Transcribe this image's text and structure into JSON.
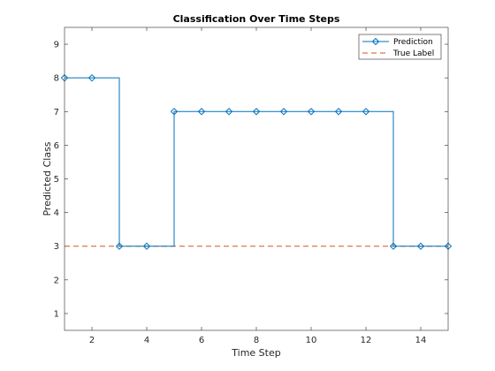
{
  "chart_data": {
    "type": "line",
    "title": "Classification Over Time Steps",
    "xlabel": "Time Step",
    "ylabel": "Predicted Class",
    "xlim": [
      1,
      15
    ],
    "ylim": [
      0.5,
      9.5
    ],
    "xticks": [
      2,
      4,
      6,
      8,
      10,
      12,
      14
    ],
    "yticks": [
      1,
      2,
      3,
      4,
      5,
      6,
      7,
      8,
      9
    ],
    "grid": false,
    "legend_position": "top-right",
    "series": [
      {
        "name": "Prediction",
        "style": "stairs",
        "marker": "diamond",
        "color": "#0072BD",
        "x": [
          1,
          2,
          3,
          4,
          5,
          6,
          7,
          8,
          9,
          10,
          11,
          12,
          13,
          14,
          15
        ],
        "values": [
          8,
          8,
          3,
          3,
          7,
          7,
          7,
          7,
          7,
          7,
          7,
          7,
          3,
          3,
          3
        ]
      },
      {
        "name": "True Label",
        "style": "dashed",
        "color": "#D95319",
        "x": [
          1,
          15
        ],
        "values": [
          3,
          3
        ]
      }
    ]
  }
}
